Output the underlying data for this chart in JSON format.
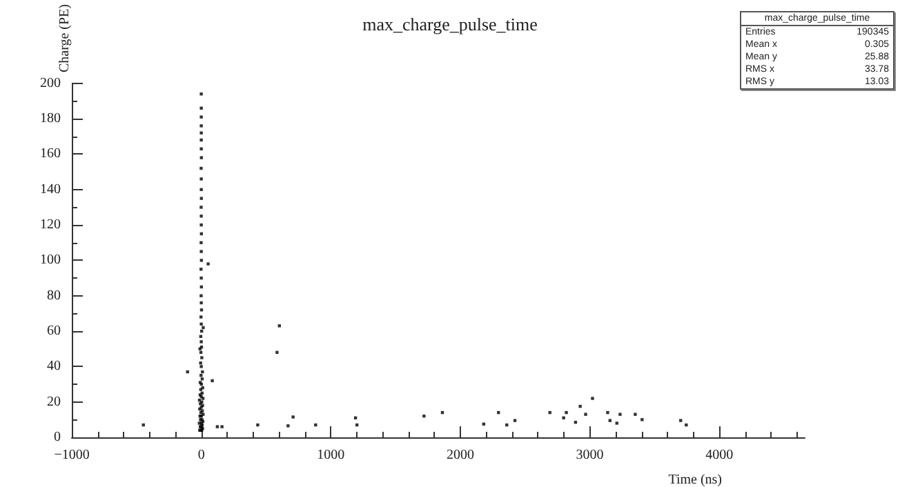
{
  "chart_data": {
    "type": "scatter",
    "title": "max_charge_pulse_time",
    "xlabel": "Time (ns)",
    "ylabel": "Charge (PE)",
    "annotations": [
      "max_charge_pulse_time",
      "Entries 190345",
      "Mean x 0.305",
      "Mean y 25.88",
      "RMS x 33.78",
      "RMS y 13.03"
    ],
    "xlim": [
      -1000,
      4660
    ],
    "xticks": [
      {
        "value": -1000,
        "label": "−1000"
      },
      0,
      1000,
      2000,
      3000,
      4000
    ],
    "ylim": [
      0,
      200
    ],
    "yticks": [
      0,
      20,
      40,
      60,
      80,
      100,
      120,
      140,
      160,
      180,
      200
    ],
    "grid": false,
    "marker": "square",
    "series": [
      {
        "color": "#000000",
        "x": [
          -12,
          -5,
          3,
          10,
          -8,
          0,
          7,
          -15,
          2,
          12,
          -6,
          5,
          -10,
          1,
          14,
          -3,
          8,
          -12,
          0,
          10,
          -7,
          4,
          -14,
          13,
          0,
          -9,
          6,
          -4,
          11,
          1,
          -8,
          7,
          -2,
          9,
          0,
          -5,
          4,
          -3,
          2,
          0,
          -4,
          3,
          0,
          -2,
          2,
          0,
          -1,
          1,
          0,
          -2,
          1,
          0,
          -1,
          1,
          0,
          0,
          -1,
          1,
          0,
          0,
          -1,
          1,
          0,
          0,
          0,
          0,
          0,
          0,
          0,
          15,
          -10,
          603,
          585,
          3021,
          2926,
          709,
          1191,
          1720,
          1862,
          2295,
          2181,
          2422,
          2692,
          2819,
          2798,
          2890,
          2968,
          3138,
          3234,
          3351,
          3404,
          3156,
          3209,
          3702,
          3745,
          436,
          670,
          883,
          124,
          160,
          85,
          1202,
          2359,
          -447,
          -106,
          53
        ],
        "values": [
          4,
          4,
          4,
          5,
          6,
          6,
          7,
          8,
          8,
          9,
          10,
          10,
          12,
          12,
          13,
          14,
          15,
          16,
          17,
          18,
          19,
          20,
          21,
          22,
          23,
          24,
          25,
          27,
          28,
          30,
          31,
          33,
          35,
          37,
          40,
          42,
          45,
          48,
          51,
          54,
          57,
          60,
          64,
          68,
          72,
          76,
          80,
          85,
          90,
          95,
          100,
          105,
          110,
          115,
          120,
          125,
          130,
          135,
          140,
          146,
          152,
          158,
          163,
          168,
          172,
          176,
          181,
          186,
          194,
          62,
          50,
          63,
          48,
          22,
          17.5,
          11.5,
          11,
          12,
          14,
          14,
          7.5,
          9.5,
          14,
          14,
          11,
          8.5,
          13,
          14,
          13,
          13,
          10,
          9.5,
          8,
          9.5,
          7,
          7,
          6.5,
          7,
          6,
          6,
          32,
          7,
          7,
          7,
          37,
          98
        ]
      }
    ]
  }
}
